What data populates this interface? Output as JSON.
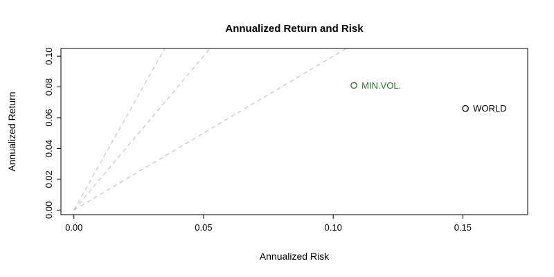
{
  "chart_data": {
    "type": "scatter",
    "title": "Annualized Return and Risk",
    "xlabel": "Annualized Risk",
    "ylabel": "Annualized Return",
    "xlim": [
      -0.005,
      0.175
    ],
    "ylim": [
      -0.003,
      0.105
    ],
    "x_ticks": [
      0.0,
      0.05,
      0.1,
      0.15
    ],
    "y_ticks": [
      0.0,
      0.02,
      0.04,
      0.06,
      0.08,
      0.1
    ],
    "tick_decimals": 2,
    "grid": false,
    "legend": false,
    "box_color": "#000000",
    "reference_lines": [
      {
        "name": "sharpe-3",
        "slope": 3,
        "intercept": 0,
        "style": "dashed",
        "color": "#bbbbbb"
      },
      {
        "name": "sharpe-2",
        "slope": 2,
        "intercept": 0,
        "style": "dashed",
        "color": "#bbbbbb"
      },
      {
        "name": "sharpe-1",
        "slope": 1,
        "intercept": 0,
        "style": "dashed",
        "color": "#bbbbbb"
      }
    ],
    "points": [
      {
        "label": "MIN.VOL.",
        "x": 0.108,
        "y": 0.081,
        "color": "#227a22"
      },
      {
        "label": "WORLD",
        "x": 0.151,
        "y": 0.066,
        "color": "#000000"
      }
    ]
  }
}
